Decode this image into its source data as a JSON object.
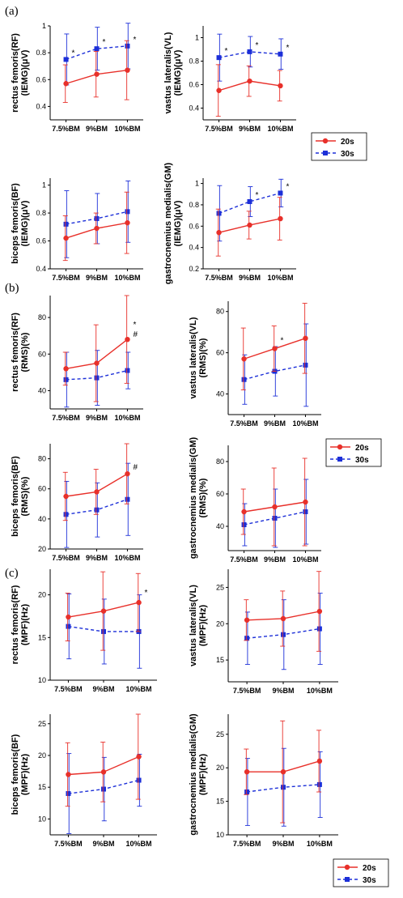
{
  "panels": [
    {
      "label": "(a)"
    },
    {
      "label": "(b)"
    },
    {
      "label": "(c)"
    }
  ],
  "legend": {
    "items": [
      "20s",
      "30s"
    ],
    "colors": [
      "#e8302a",
      "#1c2fd8"
    ]
  },
  "colors": {
    "s20": "#e8302a",
    "s30": "#1c2fd8",
    "axis": "#000000"
  },
  "chart_data": [
    {
      "type": "line",
      "panel": "a",
      "categories": [
        "7.5%BM",
        "9%BM",
        "10%BM"
      ],
      "ylabel": [
        "rectus femoris(RF)",
        "(IEMG)(μV)"
      ],
      "ylim": [
        0.3,
        1.0
      ],
      "yticks": [
        0.4,
        0.6,
        0.8,
        1.0
      ],
      "series": [
        {
          "name": "20s",
          "values": [
            0.57,
            0.64,
            0.67
          ],
          "err": [
            0.14,
            0.17,
            0.22
          ]
        },
        {
          "name": "30s",
          "values": [
            0.75,
            0.83,
            0.85
          ],
          "err": [
            0.19,
            0.16,
            0.17
          ]
        }
      ],
      "annotations": [
        {
          "cat": 0,
          "text": "*"
        },
        {
          "cat": 1,
          "text": "*"
        },
        {
          "cat": 2,
          "text": "*"
        }
      ]
    },
    {
      "type": "line",
      "panel": "a",
      "categories": [
        "7.5%BM",
        "9%BM",
        "10%BM"
      ],
      "ylabel": [
        "vastus lateralis(VL)",
        "(IEMG)(μV)"
      ],
      "ylim": [
        0.3,
        1.1
      ],
      "yticks": [
        0.4,
        0.6,
        0.8,
        1.0
      ],
      "series": [
        {
          "name": "20s",
          "values": [
            0.55,
            0.63,
            0.59
          ],
          "err": [
            0.22,
            0.13,
            0.13
          ]
        },
        {
          "name": "30s",
          "values": [
            0.83,
            0.88,
            0.86
          ],
          "err": [
            0.2,
            0.13,
            0.13
          ]
        }
      ],
      "annotations": [
        {
          "cat": 0,
          "text": "*"
        },
        {
          "cat": 1,
          "text": "*"
        },
        {
          "cat": 2,
          "text": "*"
        }
      ]
    },
    {
      "type": "line",
      "panel": "a",
      "categories": [
        "7.5%BM",
        "9%BM",
        "10%BM"
      ],
      "ylabel": [
        "biceps femoris(BF)",
        "(IEMG)(μV)"
      ],
      "ylim": [
        0.4,
        1.05
      ],
      "yticks": [
        0.4,
        0.6,
        0.8,
        1.0
      ],
      "series": [
        {
          "name": "20s",
          "values": [
            0.62,
            0.69,
            0.73
          ],
          "err": [
            0.16,
            0.11,
            0.22
          ]
        },
        {
          "name": "30s",
          "values": [
            0.72,
            0.76,
            0.81
          ],
          "err": [
            0.24,
            0.18,
            0.22
          ]
        }
      ],
      "annotations": []
    },
    {
      "type": "line",
      "panel": "a",
      "categories": [
        "7.5%BM",
        "9%BM",
        "10%BM"
      ],
      "ylabel": [
        "gastrocnemius medialis(GM)",
        "(IEMG)(μV)"
      ],
      "ylim": [
        0.2,
        1.05
      ],
      "yticks": [
        0.2,
        0.4,
        0.6,
        0.8,
        1.0
      ],
      "series": [
        {
          "name": "20s",
          "values": [
            0.54,
            0.61,
            0.67
          ],
          "err": [
            0.22,
            0.13,
            0.2
          ]
        },
        {
          "name": "30s",
          "values": [
            0.72,
            0.83,
            0.91
          ],
          "err": [
            0.26,
            0.14,
            0.13
          ]
        }
      ],
      "annotations": [
        {
          "cat": 1,
          "text": "*"
        },
        {
          "cat": 2,
          "text": "*"
        }
      ]
    },
    {
      "type": "line",
      "panel": "b",
      "categories": [
        "7.5%BM",
        "9%BM",
        "10%BM"
      ],
      "ylabel": [
        "rectus femoris(RF)",
        "(RMS)(%)"
      ],
      "ylim": [
        30,
        92
      ],
      "yticks": [
        40,
        60,
        80
      ],
      "series": [
        {
          "name": "20s",
          "values": [
            52,
            55,
            68
          ],
          "err": [
            9,
            21,
            24
          ]
        },
        {
          "name": "30s",
          "values": [
            46,
            47,
            51
          ],
          "err": [
            15,
            15,
            10
          ]
        }
      ],
      "annotations": [
        {
          "cat": 2,
          "text": "*",
          "dy": -10
        },
        {
          "cat": 2,
          "text": "#",
          "dy": 2
        }
      ]
    },
    {
      "type": "line",
      "panel": "b",
      "categories": [
        "7.5%BM",
        "9%BM",
        "10%BM"
      ],
      "ylabel": [
        "vastus lateralis(VL)",
        "(RMS)(%)"
      ],
      "ylim": [
        30,
        85
      ],
      "yticks": [
        40,
        60,
        80
      ],
      "series": [
        {
          "name": "20s",
          "values": [
            57,
            62,
            67
          ],
          "err": [
            15,
            11,
            17
          ]
        },
        {
          "name": "30s",
          "values": [
            47,
            51,
            54
          ],
          "err": [
            12,
            12,
            20
          ]
        }
      ],
      "annotations": [
        {
          "cat": 1,
          "text": "*",
          "dy": -2
        }
      ]
    },
    {
      "type": "line",
      "panel": "b",
      "categories": [
        "7.5%BM",
        "9%BM",
        "10%BM"
      ],
      "ylabel": [
        "biceps femoris(BF)",
        "(RMS)(%)"
      ],
      "ylim": [
        20,
        90
      ],
      "yticks": [
        20,
        40,
        60,
        80
      ],
      "series": [
        {
          "name": "20s",
          "values": [
            55,
            58,
            70
          ],
          "err": [
            16,
            15,
            20
          ]
        },
        {
          "name": "30s",
          "values": [
            43,
            46,
            53
          ],
          "err": [
            22,
            18,
            24
          ]
        }
      ],
      "annotations": [
        {
          "cat": 2,
          "text": "#",
          "dy": 0
        }
      ]
    },
    {
      "type": "line",
      "panel": "b",
      "categories": [
        "7.5%BM",
        "9%BM",
        "10%BM"
      ],
      "ylabel": [
        "gastrocnemius medialis(GM)",
        "(RMS)(%)"
      ],
      "ylim": [
        25,
        90
      ],
      "yticks": [
        40,
        60,
        80
      ],
      "series": [
        {
          "name": "20s",
          "values": [
            49,
            52,
            55
          ],
          "err": [
            14,
            24,
            27
          ]
        },
        {
          "name": "30s",
          "values": [
            41,
            45,
            49
          ],
          "err": [
            13,
            18,
            20
          ]
        }
      ],
      "annotations": []
    },
    {
      "type": "line",
      "panel": "c",
      "categories": [
        "7.5%BM",
        "9%BM",
        "10%BM"
      ],
      "ylabel": [
        "rectus femoris(RF)",
        "(MPF)(Hz)"
      ],
      "ylim": [
        10,
        23
      ],
      "yticks": [
        10,
        15,
        20
      ],
      "series": [
        {
          "name": "20s",
          "values": [
            17.4,
            18.1,
            19.1
          ],
          "err": [
            2.8,
            4.6,
            3.4
          ]
        },
        {
          "name": "30s",
          "values": [
            16.3,
            15.7,
            15.7
          ],
          "err": [
            3.8,
            3.8,
            4.3
          ]
        }
      ],
      "annotations": [
        {
          "cat": 2,
          "text": "*",
          "dy": -4
        }
      ]
    },
    {
      "type": "line",
      "panel": "c",
      "categories": [
        "7.5%BM",
        "9%BM",
        "10%BM"
      ],
      "ylabel": [
        "vastus lateralis(VL)",
        "(MPF)(Hz)"
      ],
      "ylim": [
        12,
        27.5
      ],
      "yticks": [
        15,
        20,
        25
      ],
      "series": [
        {
          "name": "20s",
          "values": [
            20.5,
            20.7,
            21.7
          ],
          "err": [
            2.8,
            3.8,
            5.5
          ]
        },
        {
          "name": "30s",
          "values": [
            18.0,
            18.5,
            19.3
          ],
          "err": [
            3.6,
            4.8,
            4.9
          ]
        }
      ],
      "annotations": []
    },
    {
      "type": "line",
      "panel": "c",
      "categories": [
        "7.5%BM",
        "9%BM",
        "10%BM"
      ],
      "ylabel": [
        "biceps femoris(BF)",
        "(MPF)(Hz)"
      ],
      "ylim": [
        7.5,
        26.5
      ],
      "yticks": [
        10,
        15,
        20,
        25
      ],
      "series": [
        {
          "name": "20s",
          "values": [
            17.0,
            17.4,
            19.8
          ],
          "err": [
            5.0,
            4.7,
            6.7
          ]
        },
        {
          "name": "30s",
          "values": [
            14.0,
            14.7,
            16.1
          ],
          "err": [
            6.3,
            5.0,
            4.1
          ]
        }
      ],
      "annotations": []
    },
    {
      "type": "line",
      "panel": "c",
      "categories": [
        "7.5%BM",
        "9%BM",
        "10%BM"
      ],
      "ylabel": [
        "gastrocnemius medialis(GM)",
        "(MPF)(Hz)"
      ],
      "ylim": [
        10,
        28
      ],
      "yticks": [
        10,
        15,
        20,
        25
      ],
      "series": [
        {
          "name": "20s",
          "values": [
            19.4,
            19.4,
            21.0
          ],
          "err": [
            3.4,
            7.6,
            4.6
          ]
        },
        {
          "name": "30s",
          "values": [
            16.4,
            17.1,
            17.5
          ],
          "err": [
            5.0,
            5.8,
            4.9
          ]
        }
      ],
      "annotations": []
    }
  ]
}
